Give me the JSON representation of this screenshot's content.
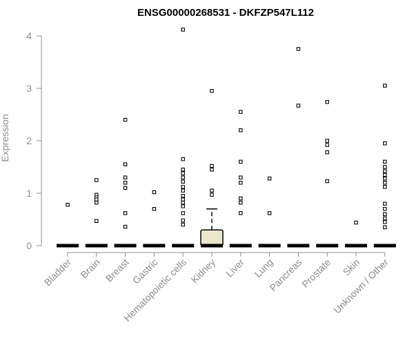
{
  "chart_data": {
    "type": "box",
    "title": "ENSG00000268531 - DKFZP547L112",
    "xlabel": "",
    "ylabel": "Expression",
    "ylim": [
      0,
      4.1
    ],
    "yticks": [
      "0",
      "1",
      "2",
      "3",
      "4"
    ],
    "box_fill": "#ece6ca",
    "categories": [
      "Bladder",
      "Brain",
      "Breast",
      "Gastric",
      "Hematopoietic cells",
      "Kidney",
      "Liver",
      "Lung",
      "Pancreas",
      "Prostate",
      "Skin",
      "Unknown / Other"
    ],
    "boxes": [
      {
        "category": "Bladder",
        "q1": 0,
        "median": 0,
        "q3": 0,
        "whisker_low": 0,
        "whisker_high": 0,
        "outliers": [
          0.78
        ]
      },
      {
        "category": "Brain",
        "q1": 0,
        "median": 0,
        "q3": 0,
        "whisker_low": 0,
        "whisker_high": 0,
        "outliers": [
          1.25,
          0.97,
          0.92,
          0.88,
          0.82,
          0.47
        ]
      },
      {
        "category": "Breast",
        "q1": 0,
        "median": 0,
        "q3": 0,
        "whisker_low": 0,
        "whisker_high": 0,
        "outliers": [
          2.4,
          1.55,
          1.3,
          1.2,
          1.1,
          0.62,
          0.36
        ]
      },
      {
        "category": "Gastric",
        "q1": 0,
        "median": 0,
        "q3": 0,
        "whisker_low": 0,
        "whisker_high": 0,
        "outliers": [
          1.02,
          0.7
        ]
      },
      {
        "category": "Hematopoietic cells",
        "q1": 0,
        "median": 0,
        "q3": 0,
        "whisker_low": 0,
        "whisker_high": 0,
        "outliers": [
          4.12,
          1.65,
          1.45,
          1.38,
          1.3,
          1.22,
          1.12,
          1.05,
          0.95,
          0.88,
          0.82,
          0.75,
          0.62,
          0.48,
          0.4
        ]
      },
      {
        "category": "Kidney",
        "q1": 0,
        "median": 0,
        "q3": 0.3,
        "whisker_low": 0,
        "whisker_high": 0.7,
        "outliers": [
          2.95,
          1.52,
          1.45,
          1.05,
          0.97
        ]
      },
      {
        "category": "Liver",
        "q1": 0,
        "median": 0,
        "q3": 0,
        "whisker_low": 0,
        "whisker_high": 0,
        "outliers": [
          2.55,
          2.2,
          1.6,
          1.3,
          1.2,
          0.9,
          0.82,
          0.62
        ]
      },
      {
        "category": "Lung",
        "q1": 0,
        "median": 0,
        "q3": 0,
        "whisker_low": 0,
        "whisker_high": 0,
        "outliers": [
          1.28,
          0.62
        ]
      },
      {
        "category": "Pancreas",
        "q1": 0,
        "median": 0,
        "q3": 0,
        "whisker_low": 0,
        "whisker_high": 0,
        "outliers": [
          3.75,
          2.67
        ]
      },
      {
        "category": "Prostate",
        "q1": 0,
        "median": 0,
        "q3": 0,
        "whisker_low": 0,
        "whisker_high": 0,
        "outliers": [
          2.74,
          2.0,
          1.92,
          1.78,
          1.23
        ]
      },
      {
        "category": "Skin",
        "q1": 0,
        "median": 0,
        "q3": 0,
        "whisker_low": 0,
        "whisker_high": 0,
        "outliers": [
          0.44
        ]
      },
      {
        "category": "Unknown / Other",
        "q1": 0,
        "median": 0,
        "q3": 0,
        "whisker_low": 0,
        "whisker_high": 0,
        "outliers": [
          3.05,
          1.95,
          1.6,
          1.5,
          1.42,
          1.35,
          1.28,
          1.2,
          1.12,
          0.8,
          0.7,
          0.6,
          0.52,
          0.45,
          0.35
        ]
      }
    ]
  }
}
